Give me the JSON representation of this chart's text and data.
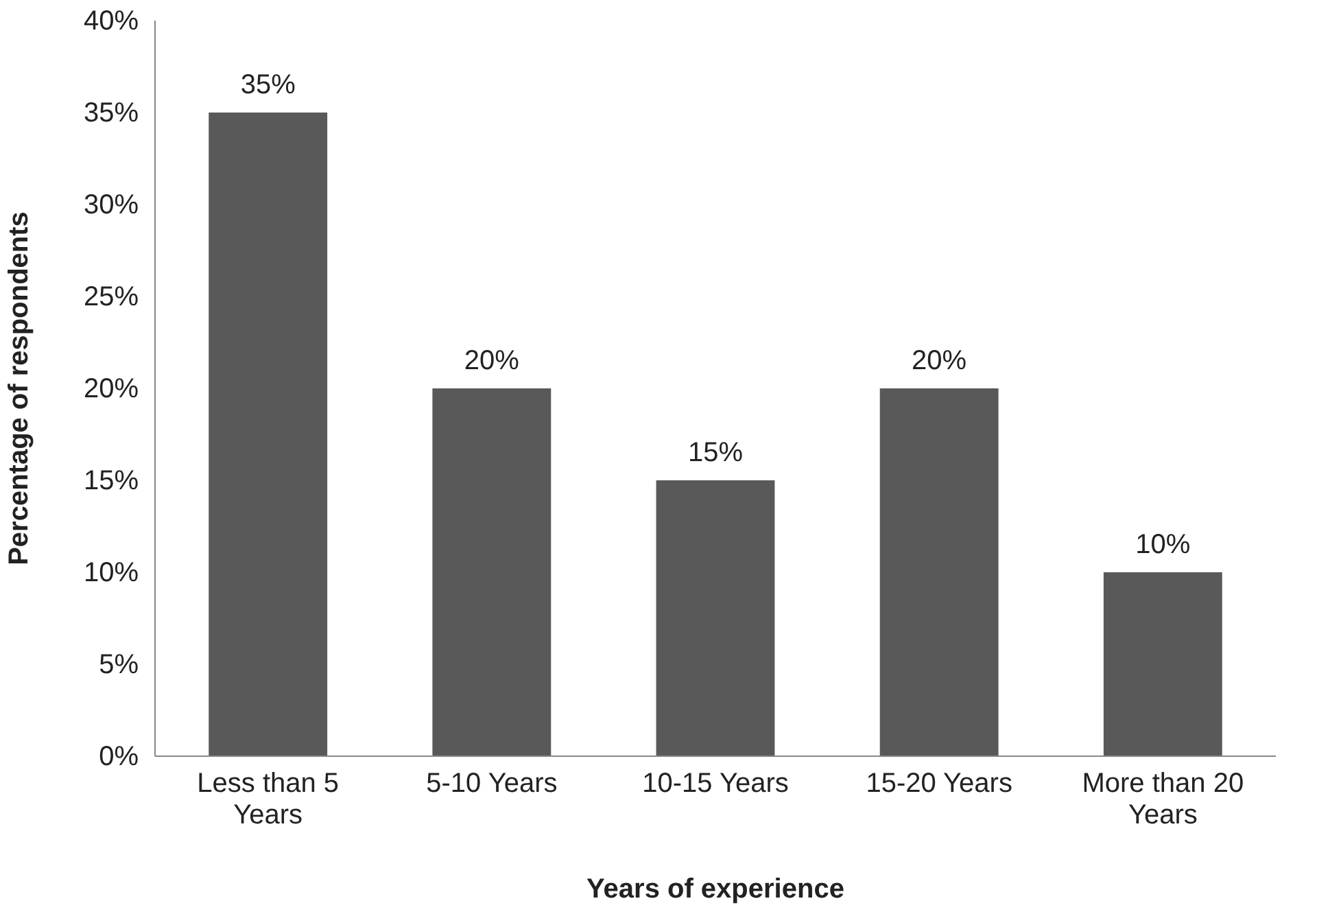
{
  "chart_data": {
    "type": "bar",
    "xlabel": "Years of experience",
    "ylabel": "Percentage of respondents",
    "categories": [
      "Less than 5 Years",
      "5-10 Years",
      "10-15 Years",
      "15-20 Years",
      "More than 20 Years"
    ],
    "values": [
      35,
      20,
      15,
      20,
      10
    ],
    "value_labels": [
      "35%",
      "20%",
      "15%",
      "20%",
      "10%"
    ],
    "color": "#595959",
    "ylim": [
      0,
      40
    ],
    "yticks": [
      {
        "value": 0,
        "label": "0%"
      },
      {
        "value": 5,
        "label": "5%"
      },
      {
        "value": 10,
        "label": "10%"
      },
      {
        "value": 15,
        "label": "15%"
      },
      {
        "value": 20,
        "label": "20%"
      },
      {
        "value": 25,
        "label": "25%"
      },
      {
        "value": 30,
        "label": "30%"
      },
      {
        "value": 35,
        "label": "35%"
      },
      {
        "value": 40,
        "label": "40%"
      }
    ],
    "grid": false
  }
}
